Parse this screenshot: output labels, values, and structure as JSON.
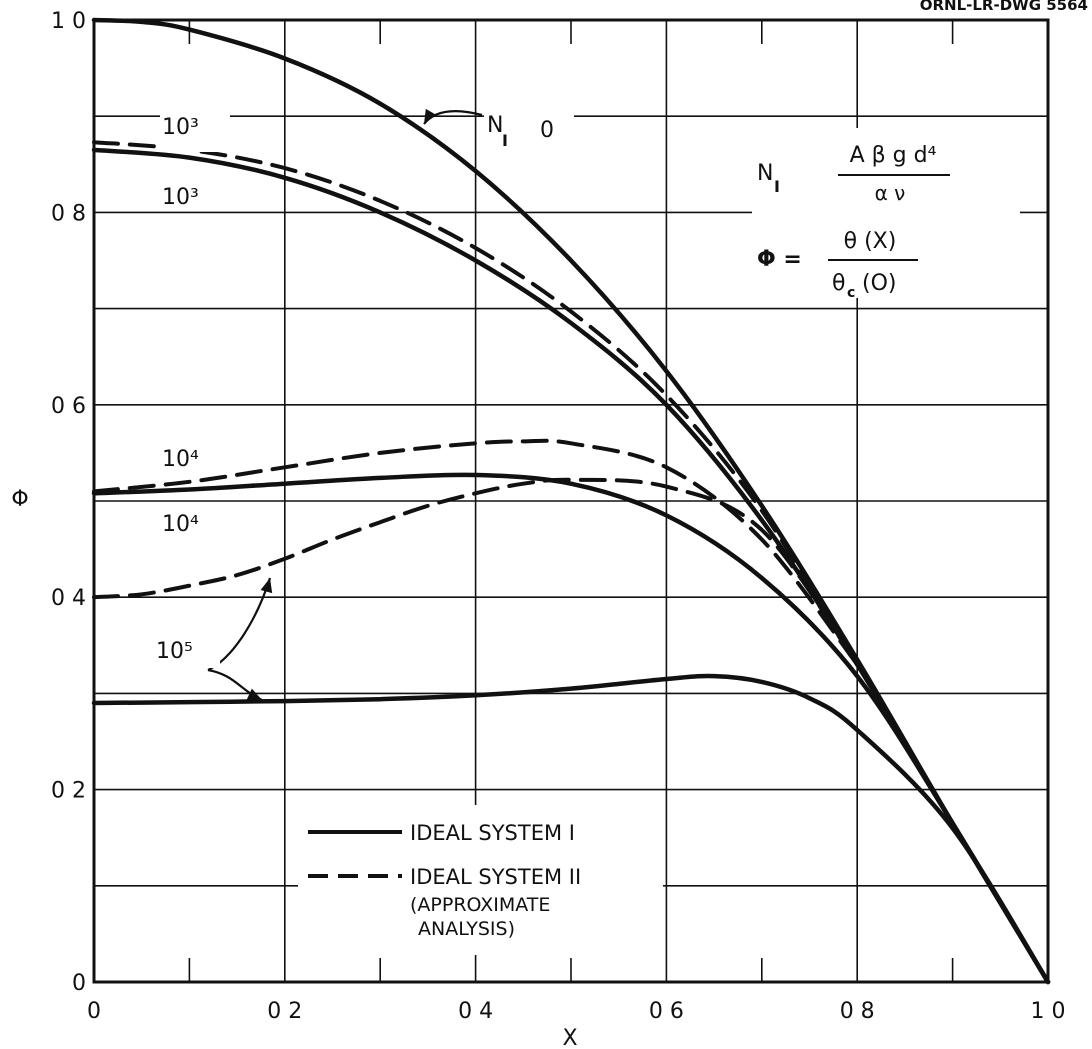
{
  "drawing_number": "ORNL-LR-DWG 5564",
  "chart_data": {
    "type": "line",
    "xlabel": "X",
    "ylabel": "Φ",
    "xlim": [
      0,
      1.0
    ],
    "ylim": [
      0,
      1.0
    ],
    "grid": true,
    "x_ticks": [
      "0",
      "0 2",
      "0 4",
      "0 6",
      "0 8",
      "1 0"
    ],
    "y_ticks": [
      "0",
      "0 2",
      "0 4",
      "0 6",
      "0 8",
      "1 0"
    ],
    "series": [
      {
        "style": "solid",
        "label": "0",
        "x": [
          0,
          0.05,
          0.1,
          0.2,
          0.3,
          0.4,
          0.5,
          0.6,
          0.7,
          0.8,
          0.9,
          1.0
        ],
        "y": [
          1.0,
          0.998,
          0.99,
          0.96,
          0.913,
          0.843,
          0.75,
          0.635,
          0.495,
          0.335,
          0.165,
          0.0
        ]
      },
      {
        "style": "solid",
        "label": "10³",
        "x": [
          0,
          0.1,
          0.2,
          0.3,
          0.4,
          0.5,
          0.6,
          0.7,
          0.8,
          0.9,
          1.0
        ],
        "y": [
          0.865,
          0.857,
          0.836,
          0.8,
          0.75,
          0.685,
          0.6,
          0.48,
          0.33,
          0.165,
          0.0
        ]
      },
      {
        "style": "dashed",
        "label": "10³",
        "x": [
          0,
          0.1,
          0.2,
          0.3,
          0.4,
          0.5,
          0.6,
          0.7,
          0.8
        ],
        "y": [
          0.873,
          0.865,
          0.846,
          0.812,
          0.763,
          0.697,
          0.61,
          0.49,
          0.33
        ]
      },
      {
        "style": "solid",
        "label": "10⁴",
        "x": [
          0,
          0.1,
          0.2,
          0.3,
          0.4,
          0.5,
          0.6,
          0.7,
          0.8,
          0.9,
          1.0
        ],
        "y": [
          0.508,
          0.512,
          0.518,
          0.524,
          0.527,
          0.518,
          0.485,
          0.42,
          0.318,
          0.165,
          0.0
        ]
      },
      {
        "style": "dashed",
        "label": "10⁴",
        "x": [
          0,
          0.1,
          0.2,
          0.3,
          0.4,
          0.45,
          0.5,
          0.6,
          0.7,
          0.8
        ],
        "y": [
          0.51,
          0.52,
          0.535,
          0.55,
          0.56,
          0.562,
          0.56,
          0.535,
          0.46,
          0.33
        ]
      },
      {
        "style": "solid",
        "label": "10⁵",
        "x": [
          0,
          0.1,
          0.2,
          0.3,
          0.4,
          0.5,
          0.6,
          0.65,
          0.7,
          0.75,
          0.8,
          0.9,
          1.0
        ],
        "y": [
          0.29,
          0.291,
          0.292,
          0.294,
          0.298,
          0.305,
          0.315,
          0.318,
          0.312,
          0.295,
          0.262,
          0.16,
          0.0
        ]
      },
      {
        "style": "dashed",
        "label": "10⁵",
        "x": [
          0,
          0.05,
          0.1,
          0.15,
          0.2,
          0.25,
          0.3,
          0.35,
          0.4,
          0.45,
          0.5,
          0.6,
          0.7,
          0.8
        ],
        "y": [
          0.4,
          0.403,
          0.412,
          0.423,
          0.44,
          0.46,
          0.478,
          0.495,
          0.508,
          0.518,
          0.522,
          0.515,
          0.47,
          0.33
        ]
      }
    ],
    "curve_labels": {
      "n_label_n": "N",
      "n_label_sub": "I",
      "n_label_value": "0",
      "l1000_a": "10³",
      "l1000_b": "10³",
      "l1e4_a": "10⁴",
      "l1e4_b": "10⁴",
      "l1e5": "10⁵"
    },
    "formula": {
      "n_symbol": "N",
      "n_sub": "I",
      "n_numerator": "A β g d⁴",
      "n_denominator": "α ν",
      "phi_lhs": "Φ =",
      "phi_numerator": "θ (X)",
      "phi_den_theta": "θ",
      "phi_den_sub": "c",
      "phi_den_rest": "(O)"
    },
    "legend": {
      "position": "bottom-left",
      "solid_label": "IDEAL SYSTEM I",
      "dashed_label": "IDEAL SYSTEM II",
      "note_line1": "(APPROXIMATE",
      "note_line2": "ANALYSIS)"
    }
  }
}
